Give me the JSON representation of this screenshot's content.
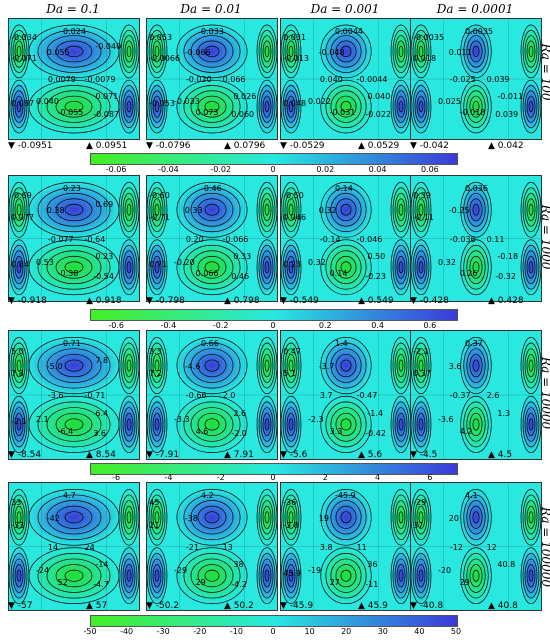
{
  "da_labels": [
    "Da = 0.1",
    "Da = 0.01",
    "Da = 0.001",
    "Da = 0.0001"
  ],
  "ra_labels": [
    "Ra = 100",
    "Ra = 1000",
    "Ra = 10000",
    "Ra = 100000"
  ],
  "colors": {
    "min": "#22dd33",
    "mid": "#28e8e0",
    "max": "#3a3ad8",
    "cbar_low": "#44ee22",
    "cbar_high": "#3a3ad8"
  },
  "chart_data": [
    {
      "type": "heatmap",
      "row": "Ra = 100",
      "panels": [
        {
          "da": "Da = 0.1",
          "min": "-0.0951",
          "max": "0.0951",
          "labels": [
            "0.024",
            "0.055",
            "-0.034",
            "-0.071",
            "0.0079",
            "-0.0079",
            "0.040",
            "-0.055",
            "0.071",
            "-0.087",
            "0.087",
            "-0.040"
          ]
        },
        {
          "da": "Da = 0.01",
          "min": "-0.0796",
          "max": "0.0796",
          "labels": [
            "0.033",
            "-0.066",
            "0.053",
            "-0.0066",
            "-0.020",
            "0.066",
            "-0.033",
            "0.073",
            "0.026",
            "0.060",
            "-0.053"
          ]
        },
        {
          "da": "Da = 0.001",
          "min": "-0.0529",
          "max": "0.0529",
          "labels": [
            "0.0044",
            "-0.048",
            "0.031",
            "-0.013",
            "0.040",
            "-0.0044",
            "0.022",
            "-0.031",
            "0.040",
            "-0.022",
            "0.048"
          ]
        },
        {
          "da": "Da = 0.0001",
          "min": "-0.042",
          "max": "0.042",
          "labels": [
            "0.0035",
            "0.011",
            "-0.0035",
            "0.018",
            "-0.025",
            "0.039",
            "0.025",
            "-0.018",
            "-0.011",
            "0.039"
          ]
        }
      ],
      "colorbar": {
        "ticks": [
          "-0.06",
          "-0.04",
          "-0.02",
          "0",
          "0.02",
          "0.04",
          "0.06"
        ],
        "range": [
          -0.07,
          0.07
        ]
      }
    },
    {
      "type": "heatmap",
      "row": "Ra = 1000",
      "panels": [
        {
          "da": "Da = 0.1",
          "min": "-0.918",
          "max": "0.918",
          "labels": [
            "0.23",
            "0.38",
            "-0.69",
            "0.077",
            "-0.077",
            "-0.64",
            "0.53",
            "-0.38",
            "0.23",
            "-0.54",
            "0.84",
            "0.69"
          ]
        },
        {
          "da": "Da = 0.01",
          "min": "-0.798",
          "max": "0.798",
          "labels": [
            "-0.46",
            "0.33",
            "-0.60",
            "-0.71",
            "0.20",
            "-0.066",
            "-0.20",
            "0.066",
            "0.33",
            "0.46",
            "0.71"
          ]
        },
        {
          "da": "Da = 0.001",
          "min": "-0.549",
          "max": "0.549",
          "labels": [
            "0.14",
            "0.32",
            "-0.50",
            "0.046",
            "-0.14",
            "-0.046",
            "0.32",
            "0.14",
            "0.50",
            "-0.23",
            "0.23"
          ]
        },
        {
          "da": "Da = 0.0001",
          "min": "-0.428",
          "max": "0.428",
          "labels": [
            "0.036",
            "-0.25",
            "0.39",
            "-0.11",
            "-0.036",
            "0.11",
            "0.32",
            "0.26",
            "-0.18",
            "-0.32"
          ]
        }
      ],
      "colorbar": {
        "ticks": [
          "-0.6",
          "-0.4",
          "-0.2",
          "0",
          "0.2",
          "0.4",
          "0.6"
        ],
        "range": [
          -0.7,
          0.7
        ]
      }
    },
    {
      "type": "heatmap",
      "row": "Ra = 10000",
      "panels": [
        {
          "da": "Da = 0.1",
          "min": "-8.54",
          "max": "8.54",
          "labels": [
            "0.71",
            "-5.0",
            "5.0",
            "7.8",
            "-3.6",
            "-0.71",
            "2.1",
            "-6.4",
            "6.4",
            "3.6",
            "-2.1",
            "7.8"
          ]
        },
        {
          "da": "Da = 0.01",
          "min": "-7.91",
          "max": "7.91",
          "labels": [
            "0.66",
            "-4.6",
            "3.3",
            "7.2",
            "-0.66",
            "2.0",
            "-3.3",
            "4.6",
            "2.6",
            "-2.0"
          ]
        },
        {
          "da": "Da = 0.001",
          "min": "-5.6",
          "max": "5.6",
          "labels": [
            "1.4",
            "-3.7",
            "0.47",
            "5.1",
            "3.7",
            "-0.47",
            "-2.3",
            "3.3",
            "-1.4",
            "-0.42"
          ]
        },
        {
          "da": "Da = 0.0001",
          "min": "-4.5",
          "max": "4.5",
          "labels": [
            "0.37",
            "3.6",
            "-2.1",
            "0.37",
            "-0.37",
            "2.6",
            "-3.6",
            "4.2",
            "1.3"
          ]
        }
      ],
      "colorbar": {
        "ticks": [
          "-6",
          "-4",
          "-2",
          "0",
          "2",
          "4",
          "6"
        ],
        "range": [
          -7,
          7
        ]
      }
    },
    {
      "type": "heatmap",
      "row": "Ra = 100000",
      "panels": [
        {
          "da": "Da = 0.1",
          "min": "-57",
          "max": "57",
          "labels": [
            "4.7",
            "-42",
            "33",
            "-33",
            "14",
            "24",
            "-24",
            "52",
            "-14",
            "-4.7"
          ]
        },
        {
          "da": "Da = 0.01",
          "min": "-50.2",
          "max": "50.2",
          "labels": [
            "4.2",
            "-38",
            "45",
            "21",
            "-21",
            "13",
            "-29",
            "29",
            "38",
            "-4.2"
          ]
        },
        {
          "da": "Da = 0.001",
          "min": "-45.9",
          "max": "45.9",
          "labels": [
            "-45.9",
            "19",
            "-36",
            "-3.8",
            "3.8",
            "11",
            "-19",
            "27",
            "36",
            "-11",
            "45.9"
          ]
        },
        {
          "da": "Da = 0.0001",
          "min": "-40.8",
          "max": "40.8",
          "labels": [
            "4.1",
            "20",
            "-29",
            "37",
            "-12",
            "12",
            "-20",
            "29",
            "40.8"
          ]
        }
      ],
      "colorbar": {
        "ticks": [
          "-50",
          "-40",
          "-30",
          "-20",
          "-10",
          "0",
          "10",
          "20",
          "30",
          "40",
          "50"
        ],
        "range": [
          -50,
          50
        ]
      }
    }
  ]
}
